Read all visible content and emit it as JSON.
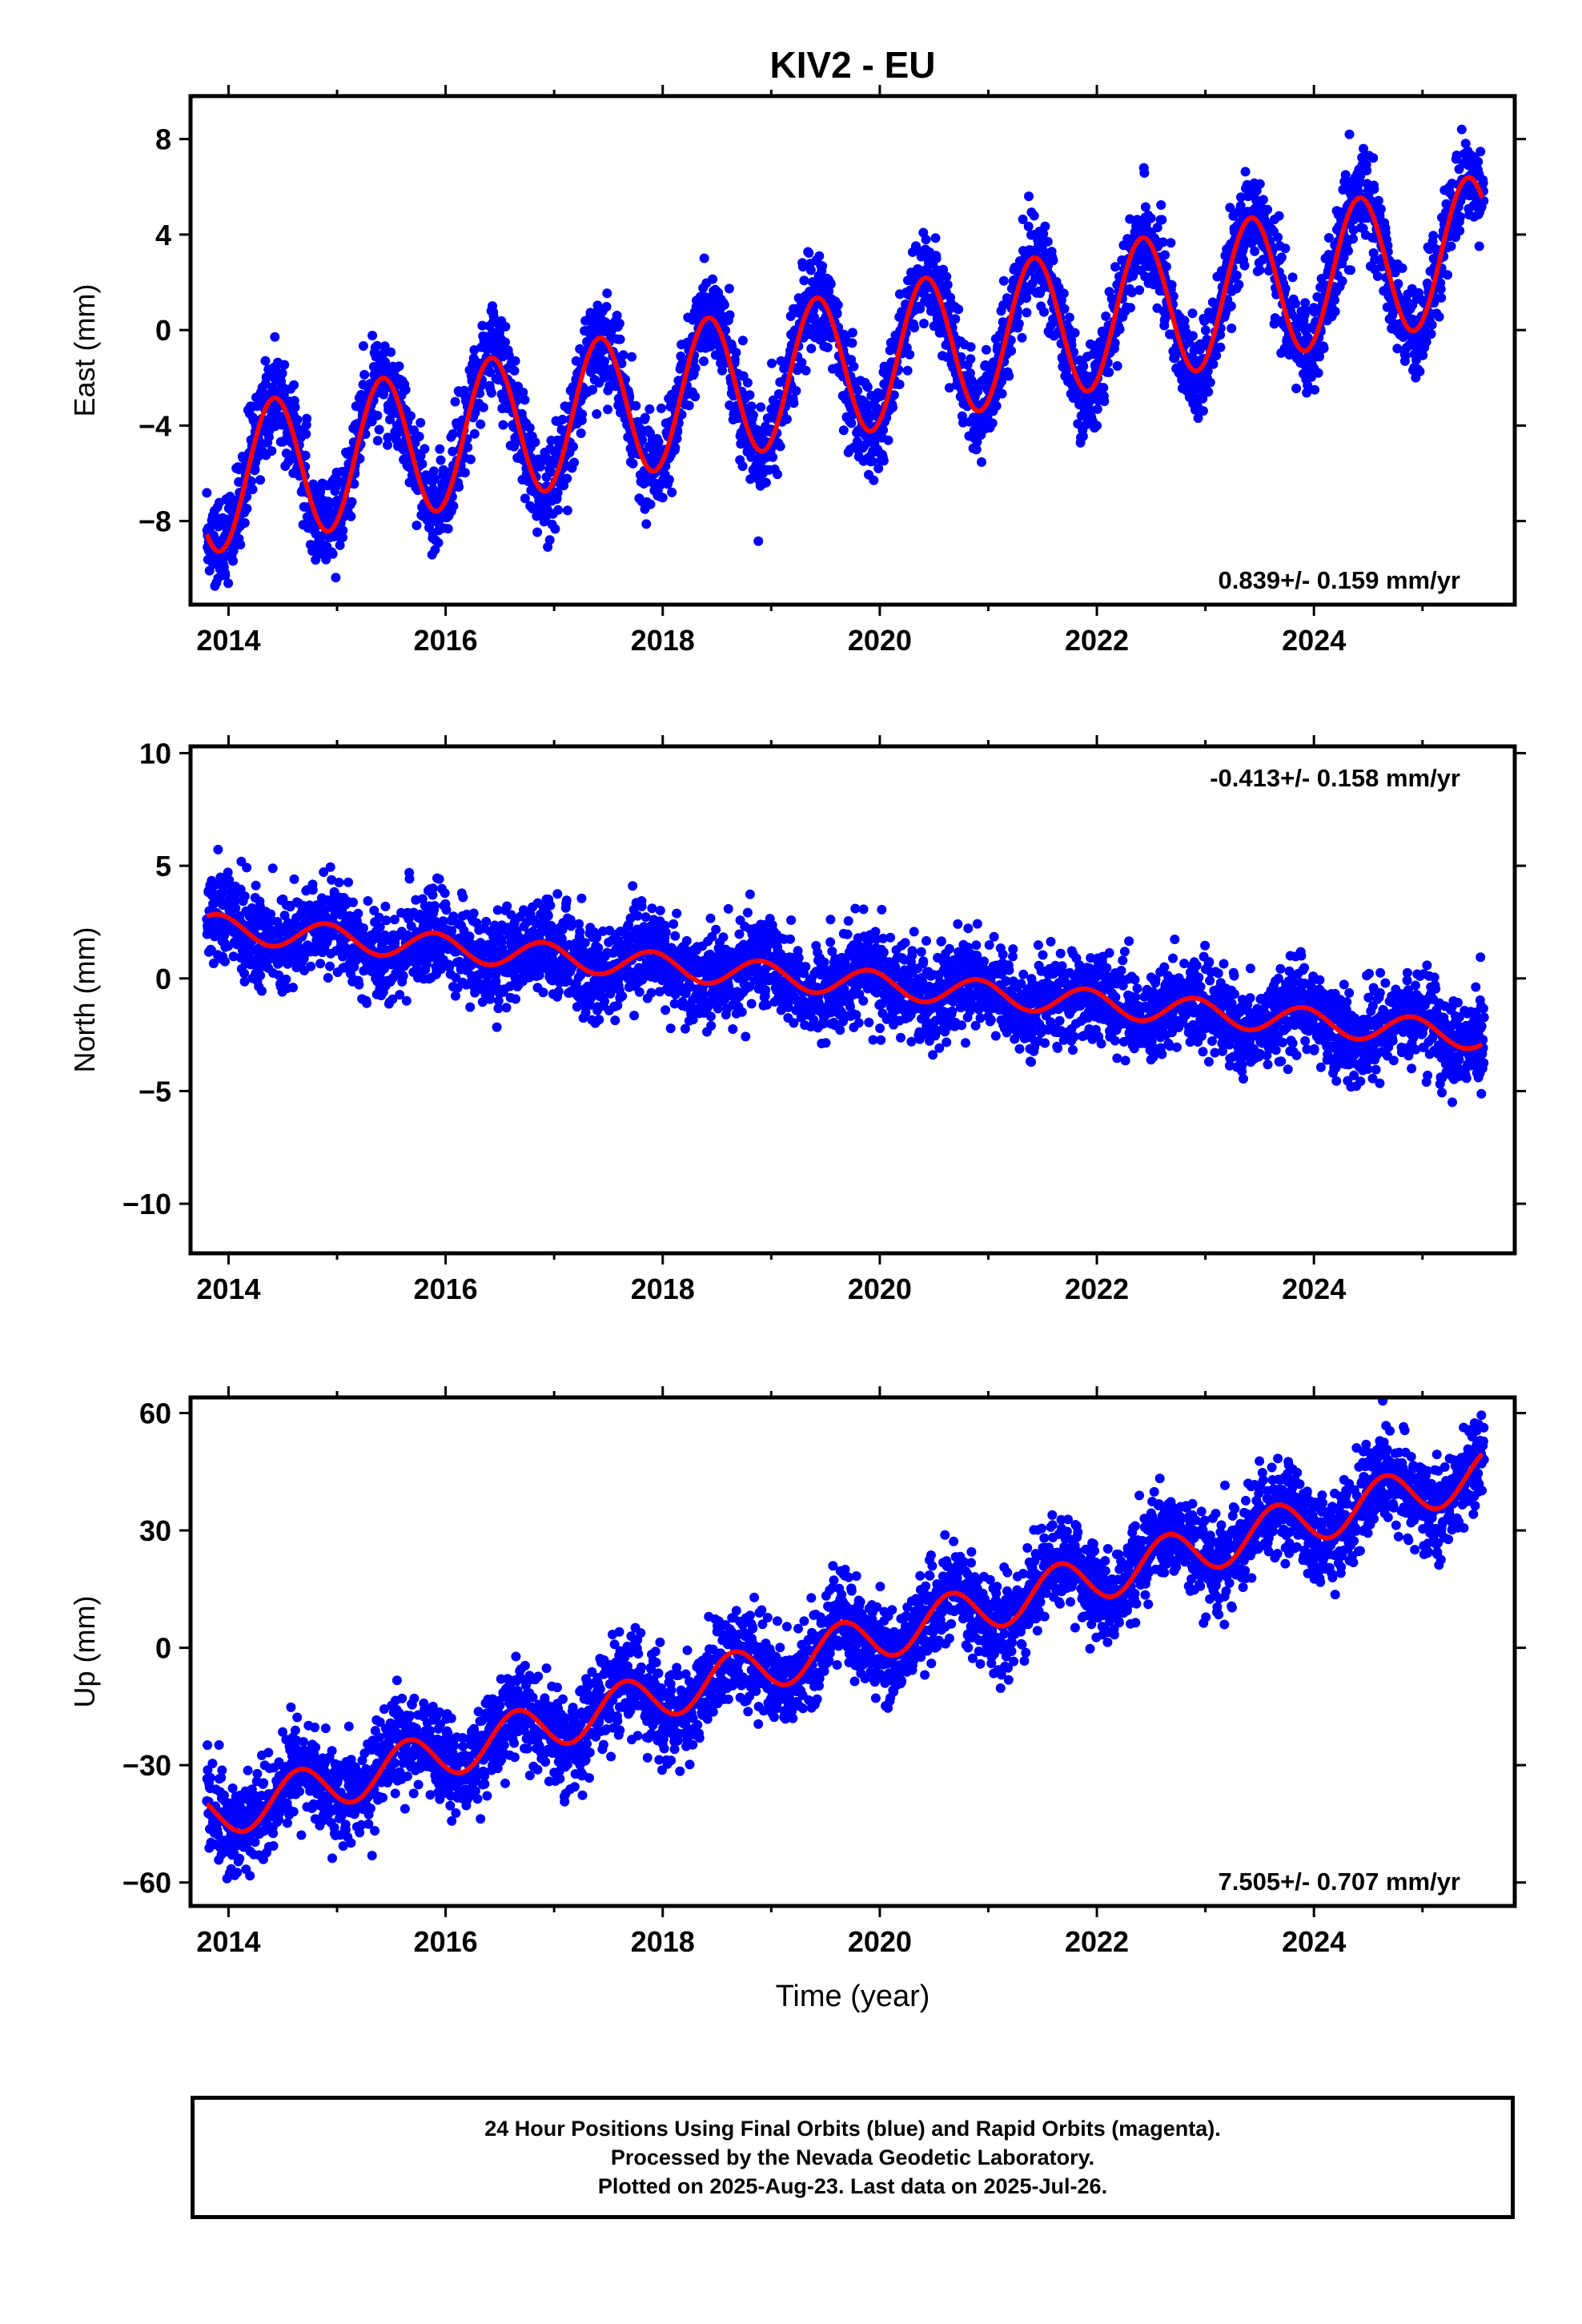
{
  "title": "KIV2 - EU",
  "chart_data": [
    {
      "type": "scatter",
      "panel": "east",
      "ylabel": "East (mm)",
      "xlabel": "",
      "xlim": [
        2013.65,
        2025.85
      ],
      "ylim": [
        -11.5,
        9.8
      ],
      "x_ticks": [
        2014,
        2016,
        2018,
        2020,
        2022,
        2024
      ],
      "y_ticks": [
        8,
        4,
        0,
        -4,
        -8
      ],
      "y_tick_labels": [
        "8",
        "4",
        "0",
        "−4",
        "−8"
      ],
      "rate_label": "0.839+/- 0.159 mm/yr",
      "rate_position": "bottom-right",
      "series": [
        {
          "role": "daily positions",
          "color": "#0000ff",
          "kind": "points"
        },
        {
          "role": "model fit",
          "color": "#ff0000",
          "kind": "line"
        }
      ],
      "model": {
        "start": 2013.8,
        "end": 2025.55,
        "intercept_2014": -6.2,
        "trend_per_year": 0.839,
        "seasonal_amplitude": 3.0,
        "seasonal_peak_fraction": 0.42
      },
      "data_range": {
        "start": 2013.8,
        "end": 2025.57
      }
    },
    {
      "type": "scatter",
      "panel": "north",
      "ylabel": "North (mm)",
      "xlabel": "",
      "xlim": [
        2013.65,
        2025.85
      ],
      "ylim": [
        -12.2,
        10.3
      ],
      "x_ticks": [
        2014,
        2016,
        2018,
        2020,
        2022,
        2024
      ],
      "y_ticks": [
        10,
        5,
        0,
        -5,
        -10
      ],
      "y_tick_labels": [
        "10",
        "5",
        "0",
        "−5",
        "−10"
      ],
      "rate_label": "-0.413+/- 0.158 mm/yr",
      "rate_position": "top-right",
      "series": [
        {
          "role": "daily positions",
          "color": "#0000ff",
          "kind": "points"
        },
        {
          "role": "model fit",
          "color": "#ff0000",
          "kind": "line"
        }
      ],
      "model": {
        "start": 2013.8,
        "end": 2025.55,
        "intercept_2014": 2.2,
        "trend_per_year": -0.413,
        "seasonal_amplitude": 0.6,
        "seasonal_peak_fraction": 0.9
      },
      "data_range": {
        "start": 2013.8,
        "end": 2025.57
      }
    },
    {
      "type": "scatter",
      "panel": "up",
      "ylabel": "Up (mm)",
      "xlabel": "Time (year)",
      "xlim": [
        2013.65,
        2025.85
      ],
      "ylim": [
        -66,
        64
      ],
      "x_ticks": [
        2014,
        2016,
        2018,
        2020,
        2022,
        2024
      ],
      "y_ticks": [
        60,
        30,
        0,
        -30,
        -60
      ],
      "y_tick_labels": [
        "60",
        "30",
        "0",
        "−30",
        "−60"
      ],
      "rate_label": "7.505+/- 0.707 mm/yr",
      "rate_position": "bottom-right",
      "series": [
        {
          "role": "daily positions",
          "color": "#0000ff",
          "kind": "points"
        },
        {
          "role": "model fit",
          "color": "#ff0000",
          "kind": "line"
        }
      ],
      "model": {
        "start": 2013.8,
        "end": 2025.55,
        "intercept_2014": -42.0,
        "trend_per_year": 7.505,
        "seasonal_amplitude": 6.0,
        "seasonal_peak_fraction": 0.65
      },
      "data_range": {
        "start": 2013.8,
        "end": 2025.57
      }
    }
  ],
  "footer": {
    "line1": "24 Hour Positions Using Final Orbits (blue) and Rapid Orbits (magenta).",
    "line2": "Processed by the Nevada Geodetic Laboratory.",
    "line3": "Plotted on 2025-Aug-23. Last data on 2025-Jul-26."
  }
}
